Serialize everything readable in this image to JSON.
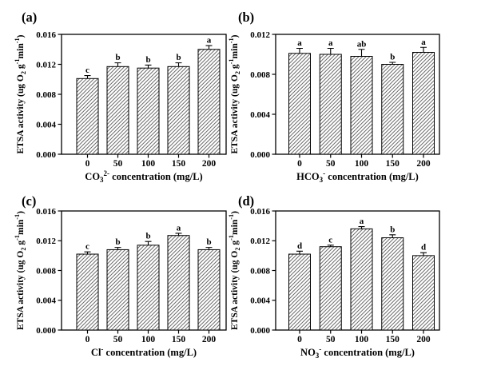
{
  "figure": {
    "background_color": "#ffffff",
    "text_color": "#000000",
    "bar_fill_color": "#ffffff",
    "bar_edge_color": "#000000",
    "bar_hatch": "diagonal-forward-slash",
    "hatch_color": "#4d4d4d",
    "ylabel_plain": "ETSA activity (ug O2 g-1min-1)",
    "ylabel_segments": [
      [
        "ETSA activity (ug O",
        "n"
      ],
      [
        "2",
        "sub"
      ],
      [
        " g",
        "n"
      ],
      [
        "-1",
        "sup"
      ],
      [
        "min",
        "n"
      ],
      [
        "-1",
        "sup"
      ],
      [
        ")",
        "n"
      ]
    ]
  },
  "chart_data": [
    {
      "type": "bar",
      "panel_label": "(a)",
      "xlabel_plain": "CO3 2- concentration (mg/L)",
      "xlabel_segments": [
        [
          "CO",
          "n"
        ],
        [
          "3",
          "sub"
        ],
        [
          "2-",
          "sup"
        ],
        [
          " concentration (mg/L)",
          "n"
        ]
      ],
      "ylabel_plain": "ETSA activity (ug O2 g-1min-1)",
      "categories": [
        "0",
        "50",
        "100",
        "150",
        "200"
      ],
      "values": [
        0.0101,
        0.0117,
        0.0115,
        0.0117,
        0.014
      ],
      "errors": [
        0.0004,
        0.0005,
        0.0004,
        0.0005,
        0.0005
      ],
      "sig_letters": [
        "c",
        "b",
        "b",
        "b",
        "a"
      ],
      "ylim": [
        0,
        0.016
      ],
      "yticks": [
        0,
        0.004,
        0.008,
        0.012,
        0.016
      ],
      "ytick_labels": [
        "0.000",
        "0.004",
        "0.008",
        "0.012",
        "0.016"
      ],
      "grid": false,
      "legend": "none"
    },
    {
      "type": "bar",
      "panel_label": "(b)",
      "xlabel_plain": "HCO3 - concentration (mg/L)",
      "xlabel_segments": [
        [
          "HCO",
          "n"
        ],
        [
          "3",
          "sub"
        ],
        [
          "-",
          "sup"
        ],
        [
          " concentration (mg/L)",
          "n"
        ]
      ],
      "ylabel_plain": "ETSA activity (ug O2 g-1min-1)",
      "categories": [
        "0",
        "50",
        "100",
        "150",
        "200"
      ],
      "values": [
        0.0101,
        0.01,
        0.0098,
        0.009,
        0.0102
      ],
      "errors": [
        0.0005,
        0.0006,
        0.0007,
        0.0002,
        0.0005
      ],
      "sig_letters": [
        "a",
        "a",
        "ab",
        "b",
        "a"
      ],
      "ylim": [
        0,
        0.012
      ],
      "yticks": [
        0,
        0.004,
        0.008,
        0.012
      ],
      "ytick_labels": [
        "0.000",
        "0.004",
        "0.008",
        "0.012"
      ],
      "grid": false,
      "legend": "none"
    },
    {
      "type": "bar",
      "panel_label": "(c)",
      "xlabel_plain": "Cl - concentration (mg/L)",
      "xlabel_segments": [
        [
          "Cl",
          "n"
        ],
        [
          "-",
          "sup"
        ],
        [
          " concentration (mg/L)",
          "n"
        ]
      ],
      "ylabel_plain": "ETSA activity (ug O2 g-1min-1)",
      "categories": [
        "0",
        "50",
        "100",
        "150",
        "200"
      ],
      "values": [
        0.0102,
        0.0108,
        0.0114,
        0.0127,
        0.0108
      ],
      "errors": [
        0.0003,
        0.0003,
        0.0005,
        0.0003,
        0.0003
      ],
      "sig_letters": [
        "c",
        "b",
        "b",
        "a",
        "b"
      ],
      "ylim": [
        0,
        0.016
      ],
      "yticks": [
        0,
        0.004,
        0.008,
        0.012,
        0.016
      ],
      "ytick_labels": [
        "0.000",
        "0.004",
        "0.008",
        "0.012",
        "0.016"
      ],
      "grid": false,
      "legend": "none"
    },
    {
      "type": "bar",
      "panel_label": "(d)",
      "xlabel_plain": "NO3 - concentration (mg/L)",
      "xlabel_segments": [
        [
          "NO",
          "n"
        ],
        [
          "3",
          "sub"
        ],
        [
          "-",
          "sup"
        ],
        [
          " concentration (mg/L)",
          "n"
        ]
      ],
      "ylabel_plain": "ETSA activity (ug O2 g-1min-1)",
      "categories": [
        "0",
        "50",
        "100",
        "150",
        "200"
      ],
      "values": [
        0.0102,
        0.0112,
        0.0136,
        0.0124,
        0.01
      ],
      "errors": [
        0.0004,
        0.0002,
        0.0003,
        0.0004,
        0.0004
      ],
      "sig_letters": [
        "d",
        "c",
        "a",
        "b",
        "d"
      ],
      "ylim": [
        0,
        0.016
      ],
      "yticks": [
        0,
        0.004,
        0.008,
        0.012,
        0.016
      ],
      "ytick_labels": [
        "0.000",
        "0.004",
        "0.008",
        "0.012",
        "0.016"
      ],
      "grid": false,
      "legend": "none"
    }
  ]
}
